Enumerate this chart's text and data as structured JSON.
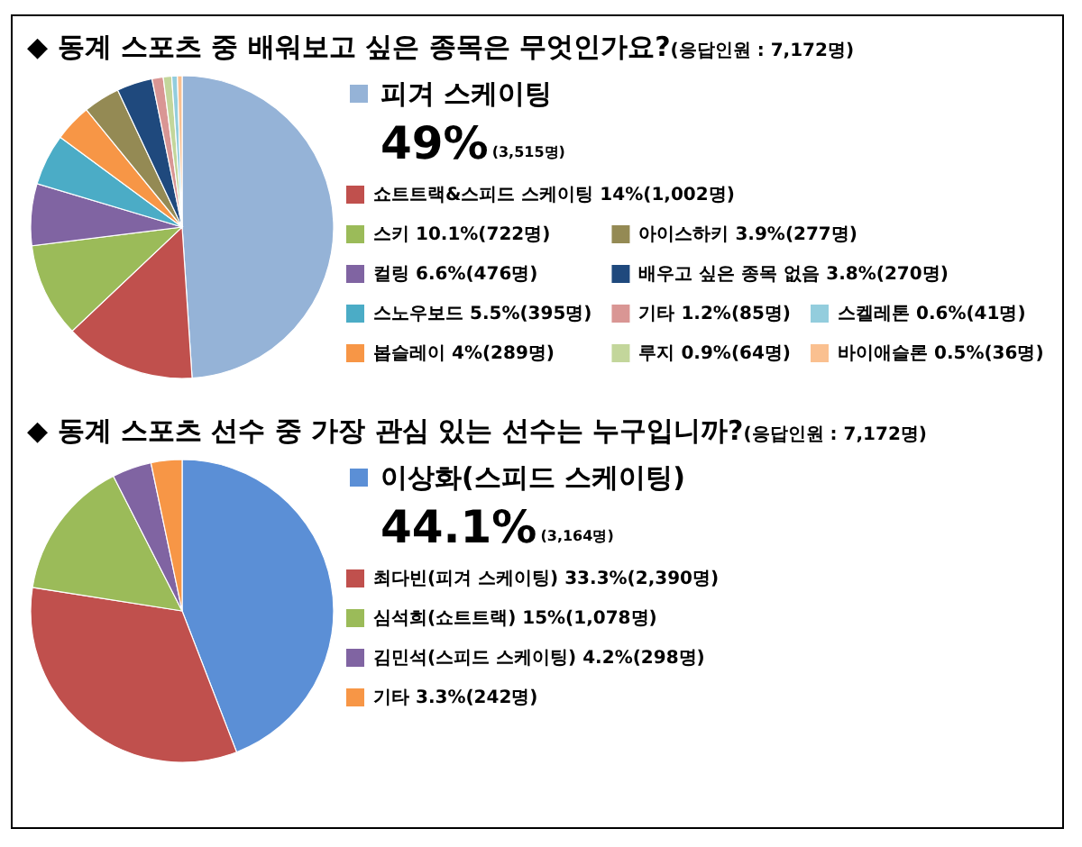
{
  "chart_data": [
    {
      "type": "pie",
      "title": "◆ 동계 스포츠 중 배워보고 싶은 종목은 무엇인가요?",
      "subtitle": "(응답인원 : 7,172명)",
      "legend": "right",
      "categories": [
        "피겨 스케이팅",
        "쇼트트랙&스피드 스케이팅",
        "스키",
        "컬링",
        "스노우보드",
        "봅슬레이",
        "아이스하키",
        "배우고 싶은 종목 없음",
        "기타",
        "루지",
        "스켈레톤",
        "바이애슬론"
      ],
      "values": [
        49,
        14,
        10.1,
        6.6,
        5.5,
        4,
        3.9,
        3.8,
        1.2,
        0.9,
        0.6,
        0.5
      ],
      "value_labels": [
        "49%(3,515명)",
        "14%(1,002명)",
        "10.1%(722명)",
        "6.6%(476명)",
        "5.5%(395명)",
        "4%(289명)",
        "3.9%(277명)",
        "3.8%(270명)",
        "1.2%(85명)",
        "0.9%(64명)",
        "0.6%(41명)",
        "0.5%(36명)"
      ],
      "colors": [
        "#95b3d7",
        "#c0504d",
        "#9bbb59",
        "#8064a2",
        "#4bacc6",
        "#f79646",
        "#948a54",
        "#1f497d",
        "#d99694",
        "#c3d69b",
        "#93cddd",
        "#fac090"
      ]
    },
    {
      "type": "pie",
      "title": "◆ 동계 스포츠 선수 중 가장 관심 있는 선수는 누구입니까?",
      "subtitle": "(응답인원 : 7,172명)",
      "legend": "right",
      "categories": [
        "이상화(스피드 스케이팅)",
        "최다빈(피겨 스케이팅)",
        "심석희(쇼트트랙)",
        "김민석(스피드 스케이팅)",
        "기타"
      ],
      "values": [
        44.1,
        33.3,
        15,
        4.2,
        3.3
      ],
      "value_labels": [
        "44.1%(3,164명)",
        "33.3%(2,390명)",
        "15%(1,078명)",
        "4.2%(298명)",
        "3.3%(242명)"
      ],
      "colors": [
        "#5b8fd6",
        "#c0504d",
        "#9bbb59",
        "#8064a2",
        "#f79646"
      ]
    }
  ]
}
